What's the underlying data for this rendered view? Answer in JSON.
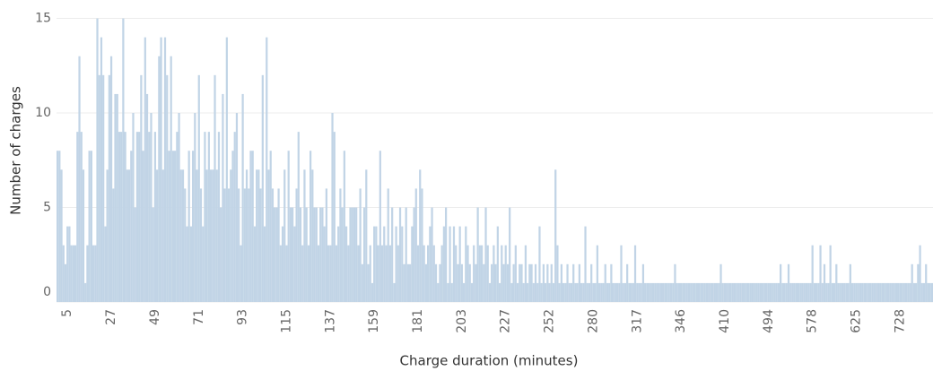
{
  "chart_data": {
    "type": "bar",
    "x_label": "Charge duration (minutes)",
    "y_label": "Number of charges",
    "color": "#c1d4e6",
    "grid": true,
    "ylim": [
      0,
      15.5
    ],
    "yticks": [
      0,
      5,
      10,
      15
    ],
    "categories": [
      null,
      null,
      null,
      null,
      null,
      5,
      null,
      null,
      null,
      null,
      null,
      null,
      null,
      null,
      null,
      null,
      null,
      null,
      null,
      null,
      null,
      null,
      null,
      null,
      null,
      null,
      null,
      27,
      null,
      null,
      null,
      null,
      null,
      null,
      null,
      null,
      null,
      null,
      null,
      null,
      null,
      null,
      null,
      null,
      null,
      null,
      null,
      null,
      null,
      49,
      null,
      null,
      null,
      null,
      null,
      null,
      null,
      null,
      null,
      null,
      null,
      null,
      null,
      null,
      null,
      null,
      null,
      null,
      null,
      null,
      null,
      71,
      null,
      null,
      null,
      null,
      null,
      null,
      null,
      null,
      null,
      null,
      null,
      null,
      null,
      null,
      null,
      null,
      null,
      null,
      null,
      null,
      null,
      93,
      null,
      null,
      null,
      null,
      null,
      null,
      null,
      null,
      null,
      null,
      null,
      null,
      null,
      null,
      null,
      null,
      null,
      null,
      null,
      null,
      null,
      115,
      null,
      null,
      null,
      null,
      null,
      null,
      null,
      null,
      null,
      null,
      null,
      null,
      null,
      null,
      null,
      null,
      null,
      null,
      null,
      null,
      null,
      137,
      null,
      null,
      null,
      null,
      null,
      null,
      null,
      null,
      null,
      null,
      null,
      null,
      null,
      null,
      null,
      null,
      null,
      null,
      null,
      null,
      null,
      159,
      null,
      null,
      null,
      null,
      null,
      null,
      null,
      null,
      null,
      null,
      null,
      null,
      null,
      null,
      null,
      null,
      null,
      null,
      null,
      null,
      null,
      181,
      null,
      null,
      null,
      null,
      null,
      null,
      null,
      null,
      null,
      null,
      null,
      null,
      null,
      null,
      null,
      null,
      null,
      null,
      null,
      null,
      null,
      203,
      null,
      null,
      null,
      null,
      null,
      null,
      null,
      null,
      null,
      null,
      null,
      null,
      null,
      null,
      null,
      null,
      null,
      null,
      null,
      null,
      null,
      227,
      null,
      null,
      null,
      null,
      null,
      null,
      null,
      null,
      null,
      null,
      null,
      null,
      null,
      null,
      null,
      null,
      null,
      null,
      null,
      null,
      null,
      252,
      null,
      null,
      null,
      null,
      null,
      null,
      null,
      null,
      null,
      null,
      null,
      null,
      null,
      null,
      null,
      null,
      null,
      null,
      null,
      null,
      null,
      280,
      null,
      null,
      null,
      null,
      null,
      null,
      null,
      null,
      null,
      null,
      null,
      null,
      null,
      null,
      null,
      null,
      null,
      null,
      null,
      null,
      null,
      317,
      null,
      null,
      null,
      null,
      null,
      null,
      null,
      null,
      null,
      null,
      null,
      null,
      null,
      null,
      null,
      null,
      null,
      null,
      null,
      null,
      null,
      346,
      null,
      null,
      null,
      null,
      null,
      null,
      null,
      null,
      null,
      null,
      null,
      null,
      null,
      null,
      null,
      null,
      null,
      null,
      null,
      null,
      null,
      410,
      null,
      null,
      null,
      null,
      null,
      null,
      null,
      null,
      null,
      null,
      null,
      null,
      null,
      null,
      null,
      null,
      null,
      null,
      null,
      null,
      null,
      494,
      null,
      null,
      null,
      null,
      null,
      null,
      null,
      null,
      null,
      null,
      null,
      null,
      null,
      null,
      null,
      null,
      null,
      null,
      null,
      null,
      null,
      578,
      null,
      null,
      null,
      null,
      null,
      null,
      null,
      null,
      null,
      null,
      null,
      null,
      null,
      null,
      null,
      null,
      null,
      null,
      null,
      null,
      null,
      625,
      null,
      null,
      null,
      null,
      null,
      null,
      null,
      null,
      null,
      null,
      null,
      null,
      null,
      null,
      null,
      null,
      null,
      null,
      null,
      null,
      null,
      728,
      null,
      null,
      null,
      null,
      null,
      null,
      null,
      null,
      null,
      null,
      null,
      null,
      null,
      null,
      null,
      null
    ],
    "values": [
      8,
      8,
      7,
      3,
      2,
      4,
      4,
      3,
      3,
      3,
      9,
      13,
      9,
      7,
      1,
      3,
      8,
      8,
      3,
      3,
      15,
      12,
      14,
      12,
      4,
      7,
      12,
      13,
      6,
      11,
      11,
      9,
      9,
      15,
      9,
      7,
      7,
      8,
      10,
      5,
      9,
      9,
      12,
      8,
      14,
      11,
      9,
      10,
      5,
      9,
      7,
      13,
      14,
      7,
      14,
      12,
      8,
      13,
      8,
      8,
      9,
      10,
      7,
      7,
      6,
      4,
      8,
      4,
      8,
      10,
      7,
      12,
      6,
      4,
      9,
      7,
      9,
      7,
      7,
      12,
      7,
      9,
      5,
      11,
      6,
      14,
      6,
      7,
      8,
      9,
      10,
      6,
      3,
      11,
      6,
      7,
      6,
      8,
      8,
      4,
      7,
      7,
      6,
      12,
      4,
      14,
      7,
      8,
      6,
      5,
      5,
      6,
      3,
      4,
      7,
      3,
      8,
      5,
      5,
      4,
      6,
      9,
      5,
      3,
      7,
      5,
      3,
      8,
      7,
      5,
      5,
      3,
      5,
      5,
      4,
      6,
      3,
      3,
      10,
      9,
      3,
      4,
      6,
      5,
      8,
      4,
      3,
      5,
      5,
      5,
      5,
      3,
      6,
      2,
      5,
      7,
      2,
      3,
      1,
      4,
      4,
      3,
      8,
      3,
      4,
      3,
      6,
      3,
      5,
      1,
      4,
      3,
      5,
      4,
      2,
      5,
      2,
      2,
      4,
      5,
      6,
      3,
      7,
      6,
      3,
      2,
      3,
      4,
      5,
      3,
      2,
      1,
      2,
      3,
      4,
      5,
      1,
      4,
      1,
      4,
      3,
      2,
      4,
      2,
      1,
      4,
      3,
      2,
      1,
      3,
      2,
      5,
      3,
      3,
      2,
      5,
      3,
      1,
      2,
      3,
      2,
      4,
      1,
      3,
      2,
      3,
      2,
      5,
      1,
      2,
      3,
      1,
      2,
      2,
      1,
      3,
      1,
      2,
      2,
      1,
      2,
      1,
      4,
      1,
      2,
      1,
      2,
      1,
      2,
      1,
      7,
      3,
      1,
      2,
      1,
      1,
      2,
      1,
      1,
      2,
      1,
      1,
      2,
      1,
      1,
      4,
      1,
      1,
      2,
      1,
      1,
      3,
      1,
      1,
      1,
      2,
      1,
      1,
      2,
      1,
      1,
      1,
      1,
      3,
      1,
      1,
      2,
      1,
      1,
      1,
      3,
      1,
      1,
      1,
      2,
      1,
      1,
      1,
      1,
      1,
      1,
      1,
      1,
      1,
      1,
      1,
      1,
      1,
      1,
      1,
      2,
      1,
      1,
      1,
      1,
      1,
      1,
      1,
      1,
      1,
      1,
      1,
      1,
      1,
      1,
      1,
      1,
      1,
      1,
      1,
      1,
      1,
      1,
      2,
      1,
      1,
      1,
      1,
      1,
      1,
      1,
      1,
      1,
      1,
      1,
      1,
      1,
      1,
      1,
      1,
      1,
      1,
      1,
      1,
      1,
      1,
      1,
      1,
      1,
      1,
      1,
      1,
      1,
      2,
      1,
      1,
      1,
      2,
      1,
      1,
      1,
      1,
      1,
      1,
      1,
      1,
      1,
      1,
      1,
      3,
      1,
      1,
      1,
      3,
      1,
      2,
      1,
      1,
      3,
      1,
      1,
      2,
      1,
      1,
      1,
      1,
      1,
      1,
      2,
      1,
      1,
      1,
      1,
      1,
      1,
      1,
      1,
      1,
      1,
      1,
      1,
      1,
      1,
      1,
      1,
      1,
      1,
      1,
      1,
      1,
      1,
      1,
      1,
      1,
      1,
      1,
      1,
      1,
      1,
      2,
      1,
      1,
      2,
      3,
      1,
      1,
      2,
      1,
      1,
      1
    ]
  }
}
